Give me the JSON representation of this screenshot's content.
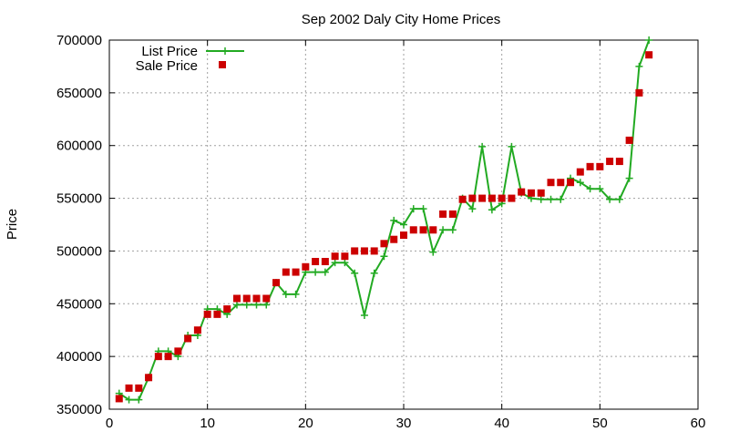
{
  "chart_data": {
    "type": "line",
    "title": "Sep 2002 Daly City Home Prices",
    "xlabel": "",
    "ylabel": "Price",
    "xlim": [
      0,
      60
    ],
    "ylim": [
      350000,
      700000
    ],
    "x_ticks": [
      "0",
      "10",
      "20",
      "30",
      "40",
      "50",
      "60"
    ],
    "y_ticks": [
      "350000",
      "400000",
      "450000",
      "500000",
      "550000",
      "600000",
      "650000",
      "700000"
    ],
    "grid": true,
    "legend_position": "top-left",
    "series": [
      {
        "name": "List Price",
        "style": "line with plus markers",
        "color": "#22aa22",
        "x": [
          1,
          2,
          3,
          4,
          5,
          6,
          7,
          8,
          9,
          10,
          11,
          12,
          13,
          14,
          15,
          16,
          17,
          18,
          19,
          20,
          21,
          22,
          23,
          24,
          25,
          26,
          27,
          28,
          29,
          30,
          31,
          32,
          33,
          34,
          35,
          36,
          37,
          38,
          39,
          40,
          41,
          42,
          43,
          44,
          45,
          46,
          47,
          48,
          49,
          50,
          51,
          52,
          53,
          54,
          55
        ],
        "y": [
          365000,
          359000,
          359000,
          380000,
          405000,
          405000,
          400000,
          420000,
          420000,
          445000,
          445000,
          440000,
          449000,
          449000,
          449000,
          449000,
          470000,
          459000,
          459000,
          480000,
          480000,
          480000,
          489000,
          489000,
          479000,
          439000,
          479000,
          495000,
          529000,
          525000,
          540000,
          540000,
          499000,
          520000,
          520000,
          550000,
          540000,
          599000,
          539000,
          545000,
          599000,
          555000,
          550000,
          549000,
          549000,
          549000,
          569000,
          565000,
          559000,
          559000,
          549000,
          549000,
          569000,
          675000,
          700000
        ]
      },
      {
        "name": "Sale Price",
        "style": "square markers",
        "color": "#cc0000",
        "x": [
          1,
          2,
          3,
          4,
          5,
          6,
          7,
          8,
          9,
          10,
          11,
          12,
          13,
          14,
          15,
          16,
          17,
          18,
          19,
          20,
          21,
          22,
          23,
          24,
          25,
          26,
          27,
          28,
          29,
          30,
          31,
          32,
          33,
          34,
          35,
          36,
          37,
          38,
          39,
          40,
          41,
          42,
          43,
          44,
          45,
          46,
          47,
          48,
          49,
          50,
          51,
          52,
          53,
          54,
          55
        ],
        "y": [
          360000,
          370000,
          370000,
          380000,
          400000,
          400000,
          405000,
          417000,
          425000,
          440000,
          440000,
          445000,
          455000,
          455000,
          455000,
          455000,
          470000,
          480000,
          480000,
          485000,
          490000,
          490000,
          495000,
          495000,
          500000,
          500000,
          500000,
          507000,
          511000,
          515000,
          520000,
          520000,
          520000,
          535000,
          535000,
          549000,
          550000,
          550000,
          550000,
          550000,
          550000,
          556000,
          555000,
          555000,
          565000,
          565000,
          565000,
          575000,
          580000,
          580000,
          585000,
          585000,
          605000,
          650000,
          686000
        ]
      }
    ]
  }
}
